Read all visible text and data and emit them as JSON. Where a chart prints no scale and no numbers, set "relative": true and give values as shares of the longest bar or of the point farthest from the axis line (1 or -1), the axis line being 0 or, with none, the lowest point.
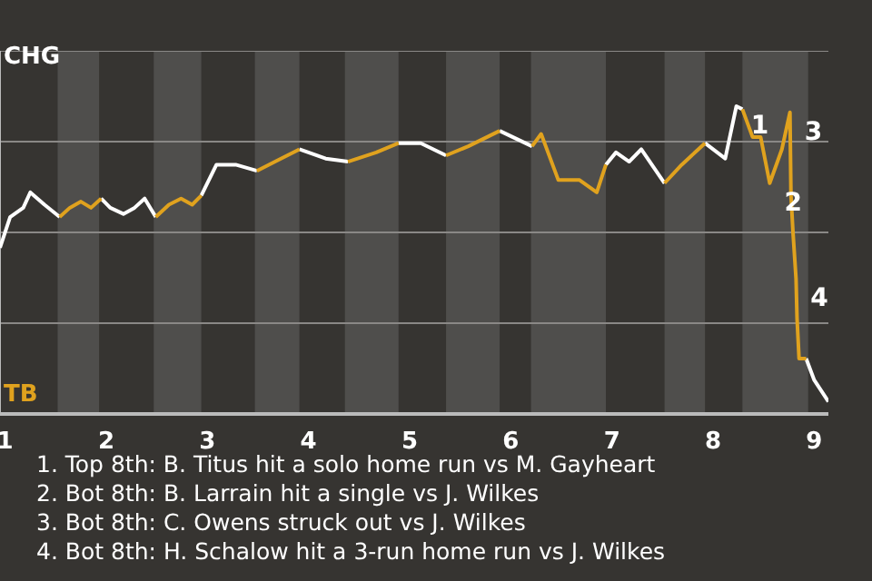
{
  "chart_data": {
    "type": "line",
    "marker": "none",
    "line_style": "solid",
    "grid": true,
    "relative": true,
    "xlim": [
      0.95,
      9.14
    ],
    "xticks": [
      1,
      2,
      3,
      4,
      5,
      6,
      7,
      8,
      9
    ],
    "series": [
      {
        "color": "#ffffff",
        "x": [
          0.95,
          1.05,
          1.18,
          1.25,
          1.39,
          1.54,
          1.64,
          1.95,
          2.04,
          2.17,
          2.28,
          2.38,
          2.49,
          2.62,
          2.94,
          3.09,
          3.28,
          3.49,
          3.67,
          3.91,
          4.17,
          4.39,
          4.67,
          4.89,
          5.11,
          5.36,
          5.58,
          5.89,
          6.21,
          6.3,
          6.94,
          7.04,
          7.17,
          7.29,
          7.52,
          7.69,
          7.92,
          8.12,
          8.23,
          8.29,
          8.39,
          8.92,
          9.0,
          9.14
        ],
        "values": [
          0.54,
          0.64,
          0.67,
          0.72,
          0.68,
          0.64,
          null,
          0.7,
          0.67,
          0.65,
          0.67,
          0.7,
          0.64,
          null,
          0.71,
          0.81,
          0.81,
          0.79,
          null,
          0.86,
          0.83,
          0.82,
          null,
          0.88,
          0.88,
          0.84,
          null,
          0.92,
          0.87,
          null,
          0.81,
          0.85,
          0.82,
          0.86,
          0.75,
          null,
          0.88,
          0.83,
          1,
          0.99,
          null,
          0.18,
          0.11,
          0.04
        ]
      },
      {
        "color": "#e0a21e",
        "x": [
          1.54,
          1.64,
          1.75,
          1.85,
          1.95,
          2.17,
          2.49,
          2.62,
          2.74,
          2.85,
          2.94,
          3.09,
          3.49,
          3.67,
          3.91,
          4.17,
          4.39,
          4.67,
          4.89,
          5.11,
          5.36,
          5.58,
          5.89,
          6.08,
          6.21,
          6.3,
          6.47,
          6.68,
          6.85,
          6.94,
          7.17,
          7.52,
          7.69,
          7.92,
          8.12,
          8.29,
          8.39,
          8.47,
          8.56,
          8.68,
          8.76,
          8.77,
          8.79,
          8.82,
          8.83,
          8.85,
          8.92
        ],
        "values": [
          0.64,
          0.67,
          0.69,
          0.67,
          0.7,
          null,
          0.64,
          0.68,
          0.7,
          0.68,
          0.71,
          null,
          0.79,
          0.82,
          0.86,
          null,
          0.82,
          0.85,
          0.88,
          null,
          0.84,
          0.87,
          0.92,
          null,
          0.87,
          0.91,
          0.76,
          0.76,
          0.72,
          0.81,
          null,
          0.75,
          0.81,
          0.88,
          null,
          0.99,
          0.9,
          0.9,
          0.75,
          0.86,
          0.98,
          0.71,
          0.59,
          0.44,
          0.31,
          0.18,
          0.18
        ]
      }
    ],
    "bands": [
      {
        "axis": "x",
        "from": 1.52,
        "to": 1.93,
        "color": "#4f4e4c"
      },
      {
        "axis": "x",
        "from": 2.47,
        "to": 2.94,
        "color": "#4f4e4c"
      },
      {
        "axis": "x",
        "from": 3.47,
        "to": 3.91,
        "color": "#4f4e4c"
      },
      {
        "axis": "x",
        "from": 4.36,
        "to": 4.89,
        "color": "#4f4e4c"
      },
      {
        "axis": "x",
        "from": 5.36,
        "to": 5.89,
        "color": "#4f4e4c"
      },
      {
        "axis": "x",
        "from": 6.2,
        "to": 6.94,
        "color": "#4f4e4c"
      },
      {
        "axis": "x",
        "from": 7.52,
        "to": 7.92,
        "color": "#4f4e4c"
      },
      {
        "axis": "x",
        "from": 8.29,
        "to": 8.94,
        "color": "#4f4e4c"
      }
    ],
    "annotations": [
      "CHG",
      "TB",
      {
        "text": "1",
        "x": 8.23,
        "y": 1
      },
      {
        "text": "2",
        "x": 8.56,
        "y": 0.75
      },
      {
        "text": "3",
        "x": 8.76,
        "y": 0.98
      },
      {
        "text": "4",
        "x": 8.82,
        "y": 0.44
      },
      "1. Top 8th: B. Titus hit a solo home run vs M. Gayheart",
      "2. Bot 8th: B. Larrain hit a single vs J. Wilkes",
      "3. Bot 8th: C. Owens struck out vs J. Wilkes",
      "4. Bot 8th: H. Schalow hit a 3-run home run vs J. Wilkes"
    ]
  }
}
